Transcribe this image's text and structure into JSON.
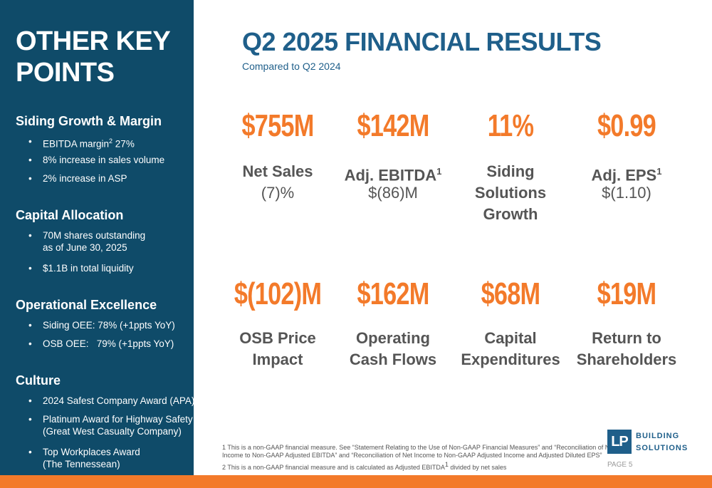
{
  "sidebar": {
    "title": "OTHER KEY POINTS",
    "sections": [
      {
        "heading": "Siding Growth & Margin",
        "bullets": [
          {
            "text": "EBITDA margin",
            "sup": "2",
            "rest": " 27%"
          },
          {
            "text": "8% increase in sales volume"
          },
          {
            "text": "2% increase in ASP"
          }
        ]
      },
      {
        "heading": "Capital Allocation",
        "bullets": [
          {
            "text": "70M shares outstanding",
            "line2": "as of June 30, 2025"
          },
          {
            "text": "$1.1B in total liquidity"
          }
        ]
      },
      {
        "heading": "Operational Excellence",
        "bullets": [
          {
            "text": "Siding OEE: 78% (+1ppts YoY)"
          },
          {
            "text": "OSB OEE:   79% (+1ppts YoY)"
          }
        ]
      },
      {
        "heading": "Culture",
        "bullets": [
          {
            "text": "2024 Safest Company Award (APA)"
          },
          {
            "text": "Platinum Award for Highway Safety",
            "line2": "(Great West Casualty Company)"
          },
          {
            "text": "Top Workplaces Award",
            "line2": "(The Tennessean)"
          }
        ]
      }
    ]
  },
  "header": {
    "title": "Q2 2025 FINANCIAL RESULTS",
    "subtitle": "Compared to Q2 2024"
  },
  "metrics": [
    {
      "value": "$755M",
      "lines": [
        "Net Sales"
      ],
      "sub": "(7)%"
    },
    {
      "value": "$142M",
      "lines": [
        "Adj. EBITDA"
      ],
      "sup": "1",
      "sub": "$(86)M"
    },
    {
      "value": "11%",
      "lines": [
        "Siding",
        "Solutions",
        "Growth"
      ]
    },
    {
      "value": "$0.99",
      "lines": [
        "Adj. EPS"
      ],
      "sup": "1",
      "sub": "$(1.10)"
    },
    {
      "value": "$(102)M",
      "lines": [
        "OSB Price",
        "Impact"
      ]
    },
    {
      "value": "$162M",
      "lines": [
        "Operating",
        "Cash Flows"
      ]
    },
    {
      "value": "$68M",
      "lines": [
        "Capital",
        "Expenditures"
      ]
    },
    {
      "value": "$19M",
      "lines": [
        "Return to",
        "Shareholders"
      ]
    }
  ],
  "footnotes": [
    {
      "text": "1 This is a non-GAAP financial measure. See “Statement Relating to the Use of Non-GAAP Financial Measures” and “Reconciliation of Net",
      "line2": "Income to Non-GAAP Adjusted EBITDA” and “Reconciliation of Net Income to Non-GAAP Adjusted Income and Adjusted Diluted EPS”"
    },
    {
      "text": "2 This is a non-GAAP financial measure and is calculated as Adjusted EBITDA",
      "sup": "1",
      "rest": " divided by net sales"
    }
  ],
  "logo": {
    "mark": "LP",
    "line1": "BUILDING",
    "line2": "SOLUTIONS"
  },
  "page": "PAGE 5"
}
